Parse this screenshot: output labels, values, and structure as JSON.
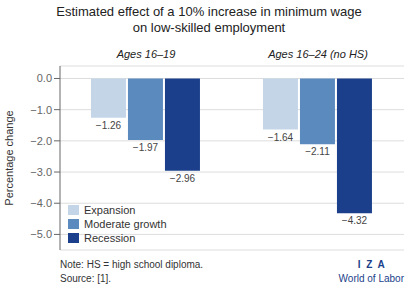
{
  "chart_data": {
    "type": "bar",
    "title": "Estimated effect of a 10% increase in minimum wage",
    "subtitle": "on low-skilled employment",
    "categories": [
      "Ages 16–19",
      "Ages 16–24 (no HS)"
    ],
    "series": [
      {
        "name": "Expansion",
        "color": "#c5d5e8",
        "values": [
          -1.26,
          -1.64
        ],
        "value_labels": [
          "−1.26",
          "−1.64"
        ]
      },
      {
        "name": "Moderate growth",
        "color": "#5b8abf",
        "values": [
          -1.97,
          -2.11
        ],
        "value_labels": [
          "−1.97",
          "−2.11"
        ]
      },
      {
        "name": "Recession",
        "color": "#1b3f8a",
        "values": [
          -2.96,
          -4.32
        ],
        "value_labels": [
          "−2.96",
          "−4.32"
        ]
      }
    ],
    "ylabel": "Percentage change",
    "ylim": [
      -5.5,
      0.4
    ],
    "yticks": [
      {
        "value": 0.0,
        "label": "0.0"
      },
      {
        "value": -1.0,
        "label": "−1.0"
      },
      {
        "value": -2.0,
        "label": "−2.0"
      },
      {
        "value": -3.0,
        "label": "−3.0"
      },
      {
        "value": -4.0,
        "label": "−4.0"
      },
      {
        "value": -5.0,
        "label": "−5.0"
      }
    ],
    "grid": true,
    "legend": "lower left",
    "data_labels": true,
    "annotations": [
      "Note: HS = high school diploma.",
      "Source: [1].",
      "I  Z  A",
      "World of Labor"
    ]
  }
}
